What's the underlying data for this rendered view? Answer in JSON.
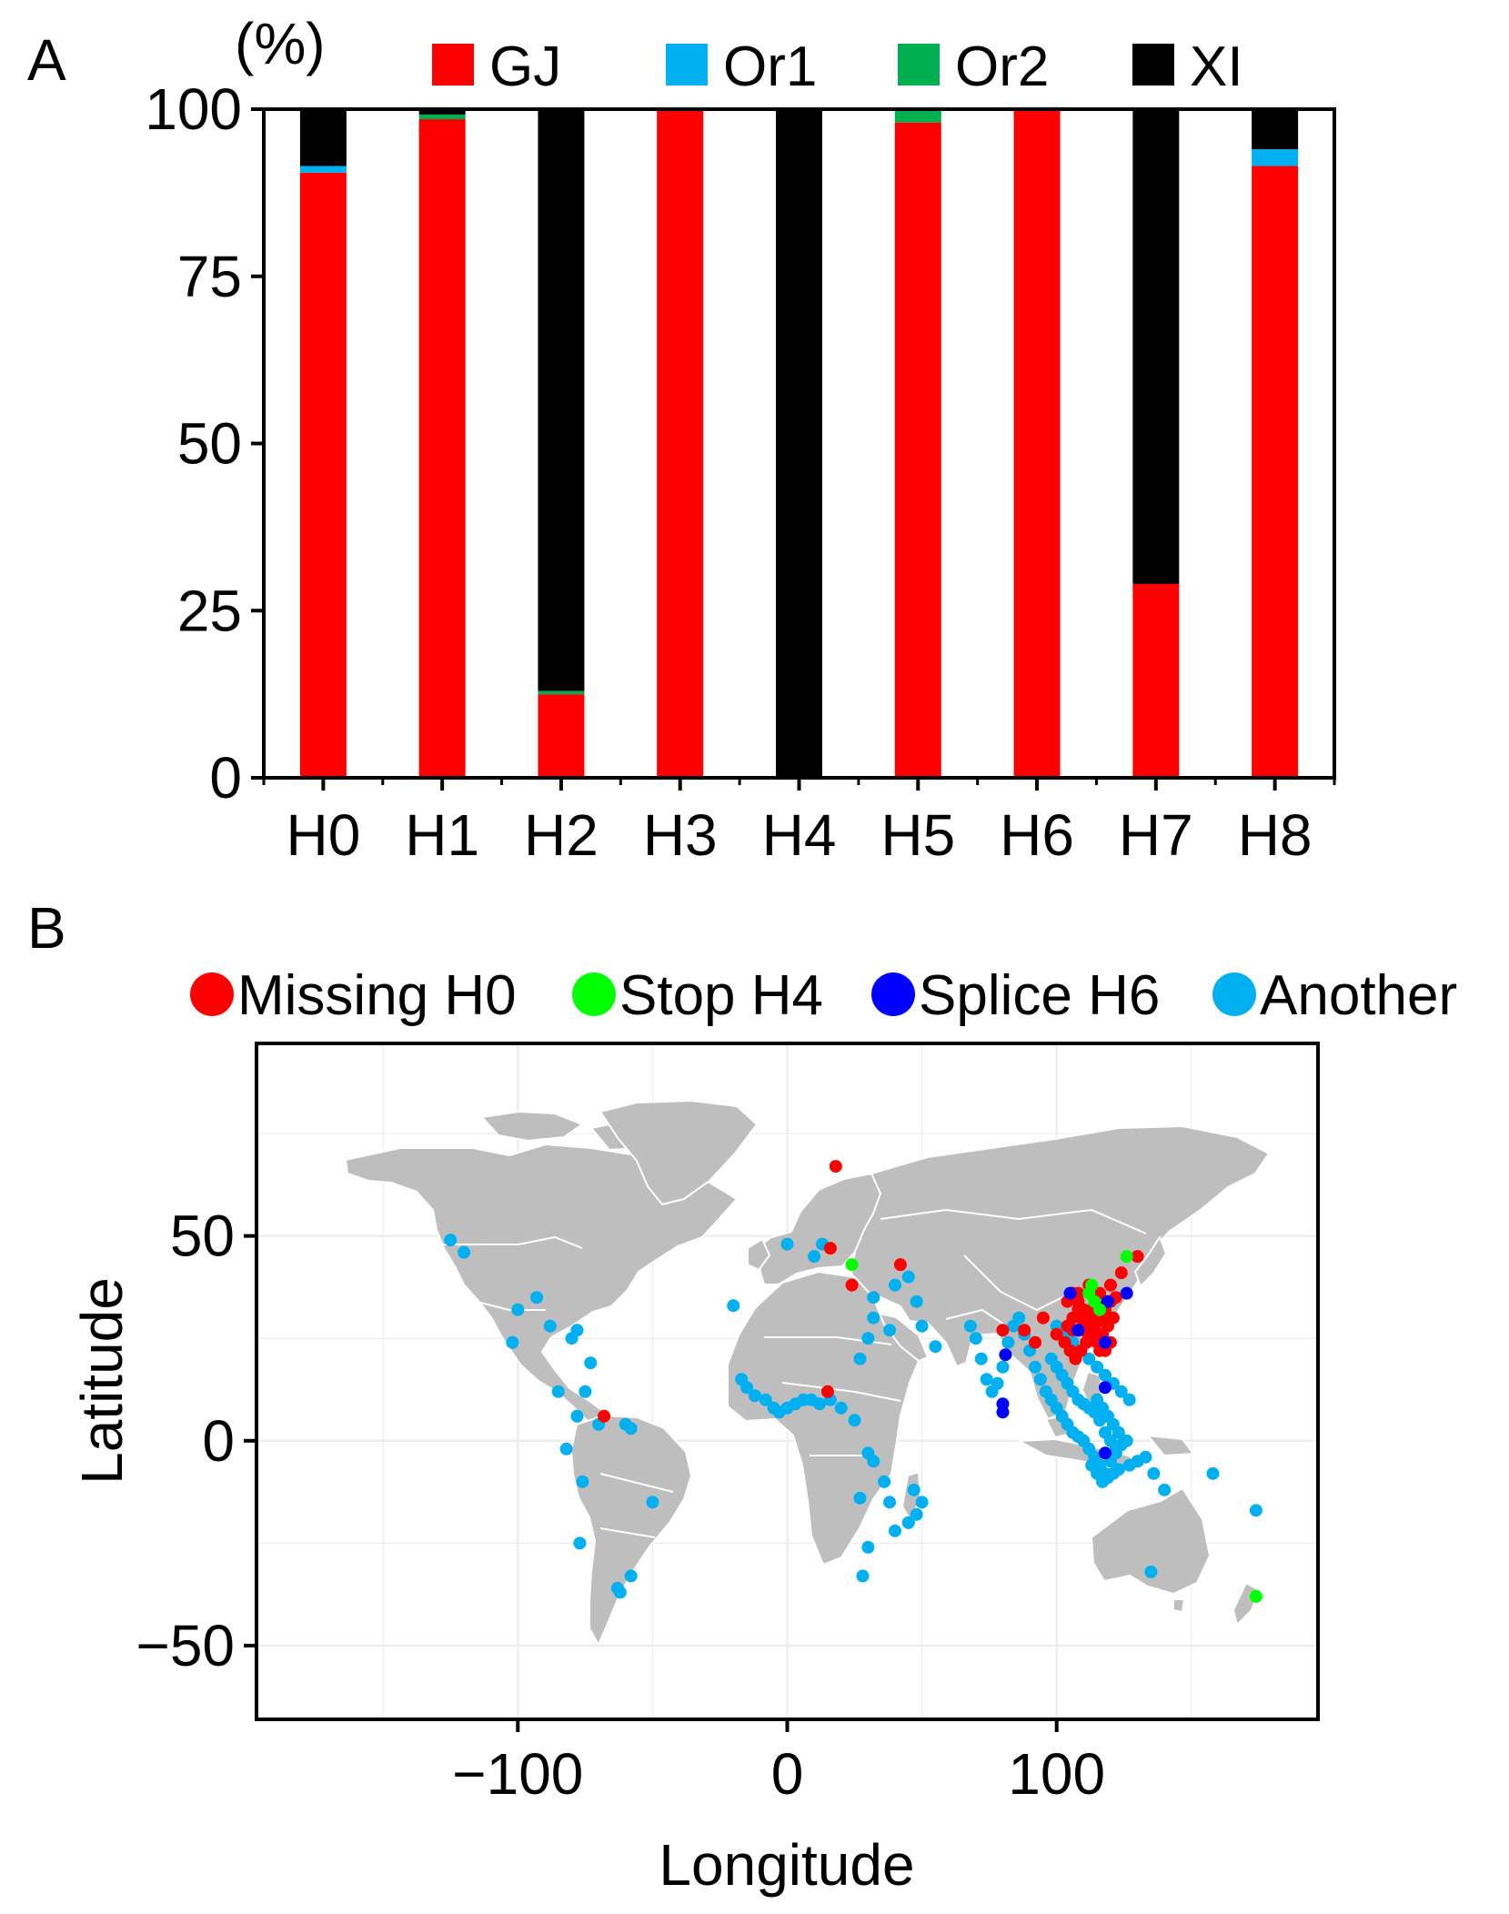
{
  "chart_data": [
    {
      "panel": "A",
      "type": "bar",
      "stacked": true,
      "ylabel": "(%)",
      "ylim": [
        0,
        100
      ],
      "yticks": [
        0,
        25,
        50,
        75,
        100
      ],
      "categories": [
        "H0",
        "H1",
        "H2",
        "H3",
        "H4",
        "H5",
        "H6",
        "H7",
        "H8"
      ],
      "series": [
        {
          "name": "GJ",
          "color": "#ff0000",
          "values": [
            90.5,
            98.5,
            12.5,
            100,
            0,
            98,
            100,
            29,
            91.5
          ]
        },
        {
          "name": "Or1",
          "color": "#00b0f0",
          "values": [
            1,
            0,
            0,
            0,
            0,
            0,
            0,
            0,
            2.5
          ]
        },
        {
          "name": "Or2",
          "color": "#00b050",
          "values": [
            0,
            0.7,
            0.5,
            0,
            0,
            2,
            0,
            0,
            0
          ]
        },
        {
          "name": "XI",
          "color": "#000000",
          "values": [
            8.5,
            0.8,
            87,
            0,
            100,
            0,
            0,
            71,
            6
          ]
        }
      ],
      "legend_position": "top"
    },
    {
      "panel": "B",
      "type": "scatter",
      "xlabel": "Longitude",
      "ylabel": "Latitude",
      "xlim": [
        -197,
        197
      ],
      "ylim": [
        -68,
        97
      ],
      "xticks": [
        -100,
        0,
        100
      ],
      "yticks": [
        -50,
        0,
        50
      ],
      "grid": true,
      "background": "world-map",
      "legend_position": "top",
      "series": [
        {
          "name": "Missing H0",
          "color": "#ff0000",
          "x": [
            18,
            16,
            24,
            42,
            15,
            -68,
            80,
            88,
            92,
            95,
            100,
            103,
            104,
            106,
            108,
            110,
            112,
            114,
            116,
            118,
            120,
            104,
            106,
            108,
            110,
            112,
            114,
            116,
            118,
            120,
            105,
            107,
            109,
            111,
            113,
            115,
            117,
            119,
            121,
            108,
            112,
            116,
            120,
            110,
            114,
            118,
            112,
            116,
            124,
            130,
            106,
            110,
            114,
            118,
            122
          ],
          "y": [
            67,
            47,
            38,
            43,
            12,
            6,
            27,
            27,
            24,
            30,
            26,
            24,
            28,
            30,
            32,
            30,
            28,
            26,
            24,
            22,
            24,
            34,
            36,
            34,
            32,
            30,
            28,
            30,
            32,
            34,
            22,
            20,
            22,
            24,
            26,
            24,
            26,
            28,
            30,
            36,
            38,
            36,
            38,
            27,
            33,
            29,
            25,
            22,
            41,
            45,
            27,
            29,
            31,
            33,
            35
          ]
        },
        {
          "name": "Stop H4",
          "color": "#00ff00",
          "x": [
            24,
            112,
            114,
            116,
            113,
            126,
            174
          ],
          "y": [
            43,
            36,
            34,
            32,
            38,
            45,
            -38
          ]
        },
        {
          "name": "Splice H6",
          "color": "#0000ff",
          "x": [
            105,
            119,
            118,
            81,
            80,
            80,
            118,
            118,
            108,
            126
          ],
          "y": [
            36,
            34,
            24,
            21,
            9,
            7,
            13,
            -3,
            27,
            36
          ]
        },
        {
          "name": "Another",
          "color": "#00b0f0",
          "x": [
            -125,
            -120,
            -100,
            -93,
            -102,
            -88,
            -80,
            -78,
            -73,
            -75,
            -85,
            -78,
            -70,
            -60,
            -58,
            -82,
            -76,
            -77,
            -63,
            -50,
            -58,
            -62,
            0,
            10,
            13,
            -20,
            -17,
            -15,
            -12,
            -8,
            -5,
            -3,
            0,
            3,
            6,
            9,
            12,
            16,
            20,
            25,
            30,
            32,
            36,
            38,
            45,
            40,
            30,
            28,
            27,
            47,
            50,
            48,
            45,
            32,
            30,
            27,
            38,
            32,
            40,
            45,
            48,
            50,
            55,
            68,
            70,
            72,
            74,
            76,
            78,
            80,
            82,
            84,
            86,
            88,
            90,
            92,
            94,
            96,
            98,
            100,
            102,
            104,
            106,
            108,
            110,
            112,
            114,
            116,
            118,
            120,
            122,
            124,
            126,
            98,
            100,
            102,
            104,
            106,
            108,
            110,
            112,
            114,
            116,
            118,
            120,
            122,
            100,
            103,
            106,
            109,
            112,
            115,
            118,
            121,
            124,
            127,
            115,
            117,
            119,
            121,
            123,
            125,
            113,
            115,
            117,
            119,
            121,
            123,
            127,
            130,
            133,
            136,
            140,
            158,
            174,
            135
          ],
          "y": [
            49,
            46,
            32,
            35,
            24,
            28,
            25,
            27,
            19,
            12,
            12,
            6,
            4,
            4,
            3,
            -2,
            -10,
            -25,
            -36,
            -15,
            -33,
            -37,
            48,
            45,
            48,
            33,
            15,
            13,
            11,
            10,
            8,
            7,
            8,
            9,
            10,
            10,
            9,
            10,
            8,
            5,
            -3,
            -5,
            -10,
            -15,
            -20,
            -22,
            -26,
            -33,
            -14,
            -12,
            -15,
            -18,
            -20,
            30,
            25,
            20,
            27,
            35,
            38,
            40,
            34,
            28,
            23,
            28,
            25,
            20,
            15,
            12,
            14,
            18,
            24,
            28,
            30,
            26,
            22,
            18,
            15,
            12,
            10,
            8,
            6,
            4,
            2,
            1,
            0,
            -2,
            -4,
            -6,
            -8,
            -5,
            -3,
            -1,
            0,
            20,
            18,
            16,
            14,
            12,
            10,
            9,
            8,
            7,
            5,
            2,
            0,
            -2,
            28,
            26,
            24,
            22,
            20,
            18,
            16,
            14,
            12,
            10,
            10,
            8,
            6,
            4,
            2,
            0,
            -6,
            -8,
            -10,
            -9,
            -8,
            -7,
            -6,
            -5,
            -4,
            -8,
            -12,
            -8,
            -17,
            -32
          ]
        }
      ]
    }
  ]
}
